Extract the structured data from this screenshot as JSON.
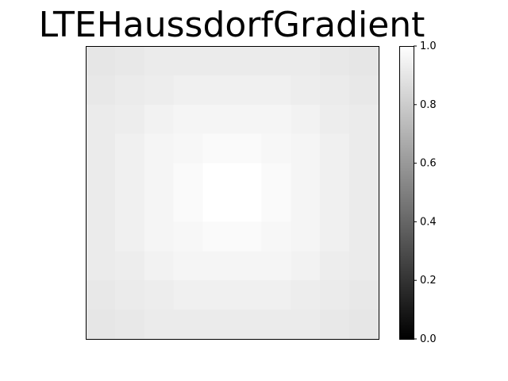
{
  "chart_data": {
    "type": "heatmap",
    "title": "LTEHaussdorfGradient",
    "colormap": "gray",
    "colorbar": {
      "ticks": [
        "0.0",
        "0.2",
        "0.4",
        "0.6",
        "0.8",
        "1.0"
      ],
      "range": [
        0,
        1
      ]
    },
    "xticks": [],
    "yticks": [],
    "values": [
      [
        0.9,
        0.91,
        0.92,
        0.92,
        0.92,
        0.92,
        0.92,
        0.92,
        0.91,
        0.9
      ],
      [
        0.91,
        0.92,
        0.93,
        0.94,
        0.94,
        0.94,
        0.94,
        0.93,
        0.92,
        0.91
      ],
      [
        0.92,
        0.93,
        0.95,
        0.96,
        0.96,
        0.96,
        0.96,
        0.95,
        0.93,
        0.92
      ],
      [
        0.92,
        0.94,
        0.96,
        0.97,
        0.98,
        0.98,
        0.97,
        0.96,
        0.94,
        0.92
      ],
      [
        0.92,
        0.94,
        0.96,
        0.98,
        1.0,
        1.0,
        0.98,
        0.96,
        0.94,
        0.92
      ],
      [
        0.92,
        0.94,
        0.96,
        0.98,
        1.0,
        1.0,
        0.98,
        0.96,
        0.94,
        0.92
      ],
      [
        0.92,
        0.94,
        0.96,
        0.97,
        0.98,
        0.98,
        0.97,
        0.96,
        0.94,
        0.92
      ],
      [
        0.92,
        0.93,
        0.95,
        0.96,
        0.96,
        0.96,
        0.96,
        0.95,
        0.93,
        0.92
      ],
      [
        0.91,
        0.92,
        0.93,
        0.94,
        0.94,
        0.94,
        0.94,
        0.93,
        0.92,
        0.91
      ],
      [
        0.9,
        0.91,
        0.92,
        0.92,
        0.92,
        0.92,
        0.92,
        0.92,
        0.91,
        0.9
      ]
    ]
  }
}
